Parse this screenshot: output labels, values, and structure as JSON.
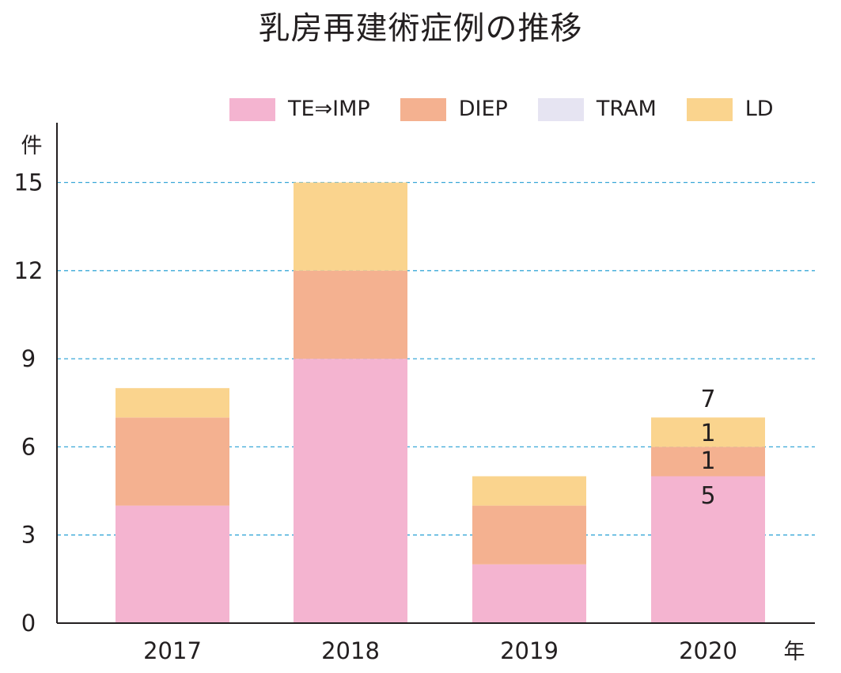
{
  "chart_data": {
    "type": "bar",
    "stacked": true,
    "title": "乳房再建術症例の推移",
    "xlabel": "年",
    "ylabel": "件",
    "categories": [
      "2017",
      "2018",
      "2019",
      "2020"
    ],
    "series": [
      {
        "name": "TE⇒IMP",
        "color": "#f4b4d0",
        "values": [
          4,
          9,
          2,
          5
        ]
      },
      {
        "name": "DIEP",
        "color": "#f4b190",
        "values": [
          3,
          3,
          2,
          1
        ]
      },
      {
        "name": "TRAM",
        "color": "#e6e4f2",
        "values": [
          0,
          0,
          0,
          0
        ]
      },
      {
        "name": "LD",
        "color": "#fad48e",
        "values": [
          1,
          3,
          1,
          1
        ]
      }
    ],
    "totals": [
      8,
      15,
      5,
      7
    ],
    "ylim": [
      0,
      17
    ],
    "yticks": [
      "0",
      "3",
      "6",
      "9",
      "12",
      "15"
    ],
    "grid": true,
    "grid_color": "#3aa8d8",
    "legend_position": "top",
    "annotations": [
      {
        "category": "2020",
        "label": "7"
      },
      {
        "category": "2020",
        "label": "1"
      },
      {
        "category": "2020",
        "label": "1"
      },
      {
        "category": "2020",
        "label": "5"
      }
    ]
  }
}
